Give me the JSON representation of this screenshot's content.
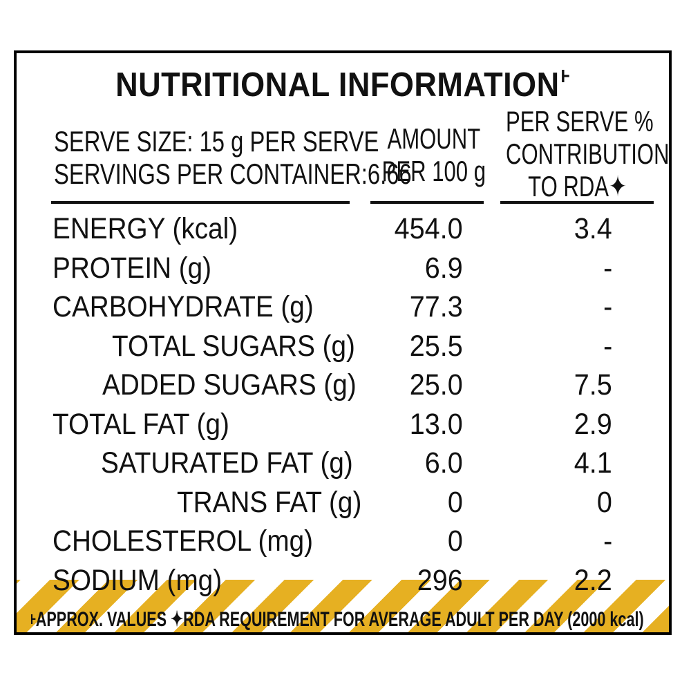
{
  "title": "NUTRITIONAL INFORMATION",
  "title_mark": "Ⱶ",
  "header": {
    "serve_size": "SERVE SIZE: 15 g PER SERVE",
    "servings": "SERVINGS PER CONTAINER:6.66",
    "amount_line1": "AMOUNT",
    "amount_line2": "PER 100 g",
    "rda_line1": "PER SERVE %",
    "rda_line2": "CONTRIBUTION",
    "rda_line3": "TO RDA✦"
  },
  "nutrients": [
    {
      "name": "ENERGY (kcal)",
      "amount": "454.0",
      "rda": "3.4"
    },
    {
      "name": "PROTEIN (g)",
      "amount": "6.9",
      "rda": "-"
    },
    {
      "name": "CARBOHYDRATE (g)",
      "amount": "77.3",
      "rda": "-"
    },
    {
      "name": "TOTAL SUGARS (g)",
      "amount": "25.5",
      "rda": "-"
    },
    {
      "name": "ADDED SUGARS (g)",
      "amount": "25.0",
      "rda": "7.5"
    },
    {
      "name": "TOTAL FAT (g)",
      "amount": "13.0",
      "rda": "2.9"
    },
    {
      "name": "SATURATED FAT (g)",
      "amount": "6.0",
      "rda": "4.1"
    },
    {
      "name": "TRANS FAT (g)",
      "amount": "0",
      "rda": "0"
    },
    {
      "name": "CHOLESTEROL (mg)",
      "amount": "0",
      "rda": "-"
    },
    {
      "name": "SODIUM (mg)",
      "amount": "296",
      "rda": "2.2"
    }
  ],
  "footer": {
    "mark": "Ⱶ",
    "text": "APPROX. VALUES ✦RDA REQUIREMENT FOR AVERAGE ADULT PER DAY (2000 kcal)"
  },
  "colors": {
    "stripe": "#e6b022",
    "border": "#000000",
    "text": "#111111"
  }
}
